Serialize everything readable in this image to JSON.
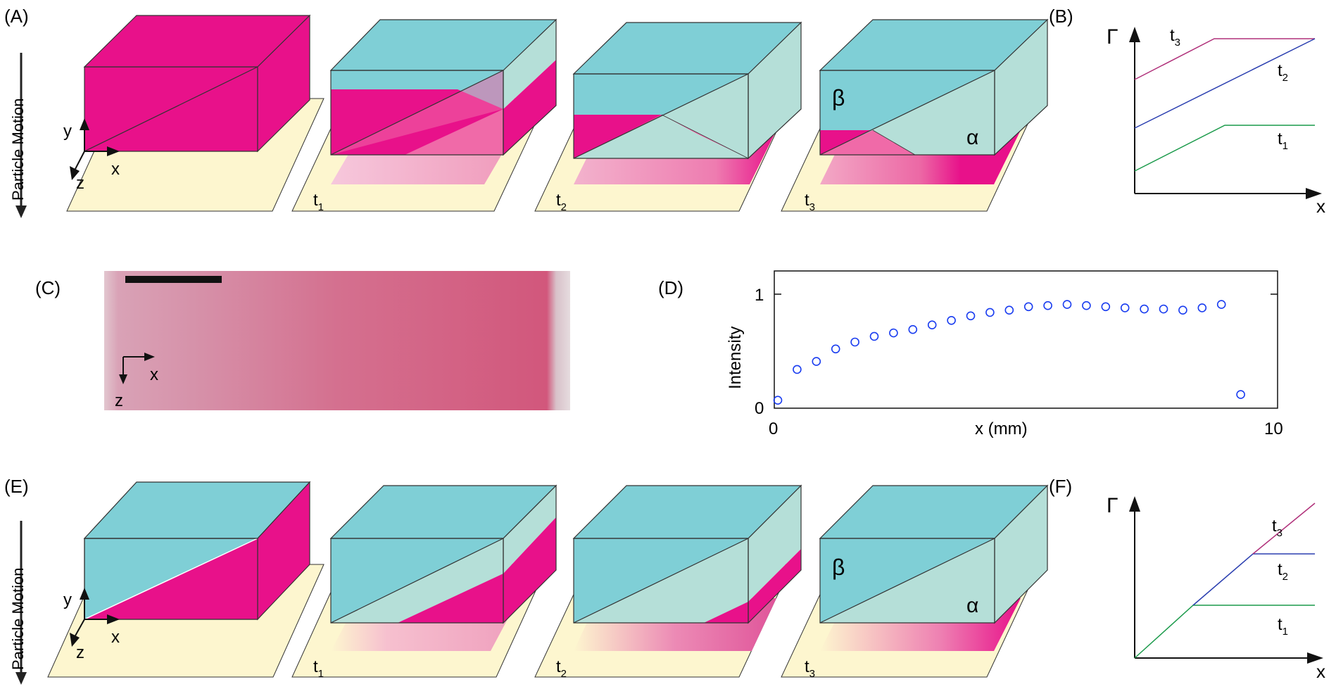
{
  "panels": {
    "a": "(A)",
    "b": "(B)",
    "c": "(C)",
    "d": "(D)",
    "e": "(E)",
    "f": "(F)"
  },
  "motion_label": "Particle Motion",
  "axis": {
    "x": "x",
    "y": "y",
    "z": "z"
  },
  "phase": {
    "beta": "β",
    "alpha": "α"
  },
  "times": {
    "t1": {
      "base": "t",
      "sub": "1"
    },
    "t2": {
      "base": "t",
      "sub": "2"
    },
    "t3": {
      "base": "t",
      "sub": "3"
    }
  },
  "graph": {
    "gamma": "Γ",
    "x": "x"
  },
  "colors": {
    "magenta": "#e8118a",
    "cyan": "#7fcfd6",
    "pale_cyan": "#b5dfd8",
    "paper": "#fdf6cf",
    "t1_line": "#1a9a4a",
    "t2_line": "#2b3fb0",
    "t3_line": "#b0307a",
    "scatter": "#1a3df0"
  },
  "chart_data": {
    "type": "scatter",
    "title": "",
    "xlabel": "x (mm)",
    "ylabel": "Intensity",
    "xlim": [
      0,
      10
    ],
    "ylim": [
      0,
      1.2
    ],
    "xticks": [
      "0",
      "10"
    ],
    "yticks": [
      "0",
      "1"
    ],
    "series": [
      {
        "name": "Intensity",
        "x": [
          0.0,
          0.4,
          0.8,
          1.2,
          1.6,
          2.0,
          2.4,
          2.8,
          3.2,
          3.6,
          4.0,
          4.4,
          4.8,
          5.2,
          5.6,
          6.0,
          6.4,
          6.8,
          7.2,
          7.6,
          8.0,
          8.4,
          8.8,
          9.2,
          9.6
        ],
        "y": [
          0.07,
          0.34,
          0.41,
          0.52,
          0.58,
          0.63,
          0.66,
          0.69,
          0.73,
          0.77,
          0.81,
          0.84,
          0.86,
          0.89,
          0.9,
          0.91,
          0.9,
          0.89,
          0.88,
          0.87,
          0.87,
          0.86,
          0.88,
          0.91,
          0.12
        ]
      }
    ]
  }
}
